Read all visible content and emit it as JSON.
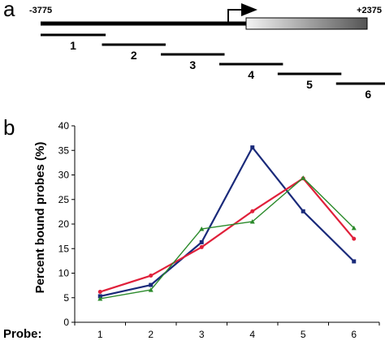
{
  "panel_a": {
    "letter": "a",
    "start_label": "-3775",
    "end_label": "+2375",
    "probes": [
      {
        "label": "1",
        "start": -3775,
        "end": -2550
      },
      {
        "label": "2",
        "start": -2620,
        "end": -1420
      },
      {
        "label": "3",
        "start": -1510,
        "end": -310
      },
      {
        "label": "4",
        "start": -410,
        "end": 790
      },
      {
        "label": "5",
        "start": 690,
        "end": 1890
      },
      {
        "label": "6",
        "start": 1790,
        "end": 3000
      }
    ]
  },
  "panel_b": {
    "letter": "b",
    "probe_label": "Probe:"
  },
  "chart_data": {
    "type": "line",
    "ylabel": "Percent  bound probes (%)",
    "xlabel": "",
    "x": [
      1,
      2,
      3,
      4,
      5,
      6
    ],
    "xlim": [
      0.5,
      6.5
    ],
    "ylim": [
      0,
      40
    ],
    "yticks": [
      0,
      5,
      10,
      15,
      20,
      25,
      30,
      35,
      40
    ],
    "grid": false,
    "legend": "none",
    "series": [
      {
        "color": "#1a2a7a",
        "marker": "square",
        "values": [
          5.3,
          7.6,
          16.3,
          35.6,
          22.6,
          12.4
        ]
      },
      {
        "color": "#e0203a",
        "marker": "circle",
        "values": [
          6.2,
          9.5,
          15.3,
          22.6,
          29.3,
          17.0
        ]
      },
      {
        "color": "#2a8a2a",
        "marker": "triangle",
        "values": [
          4.8,
          6.6,
          19.0,
          20.5,
          29.4,
          19.2
        ]
      }
    ]
  }
}
